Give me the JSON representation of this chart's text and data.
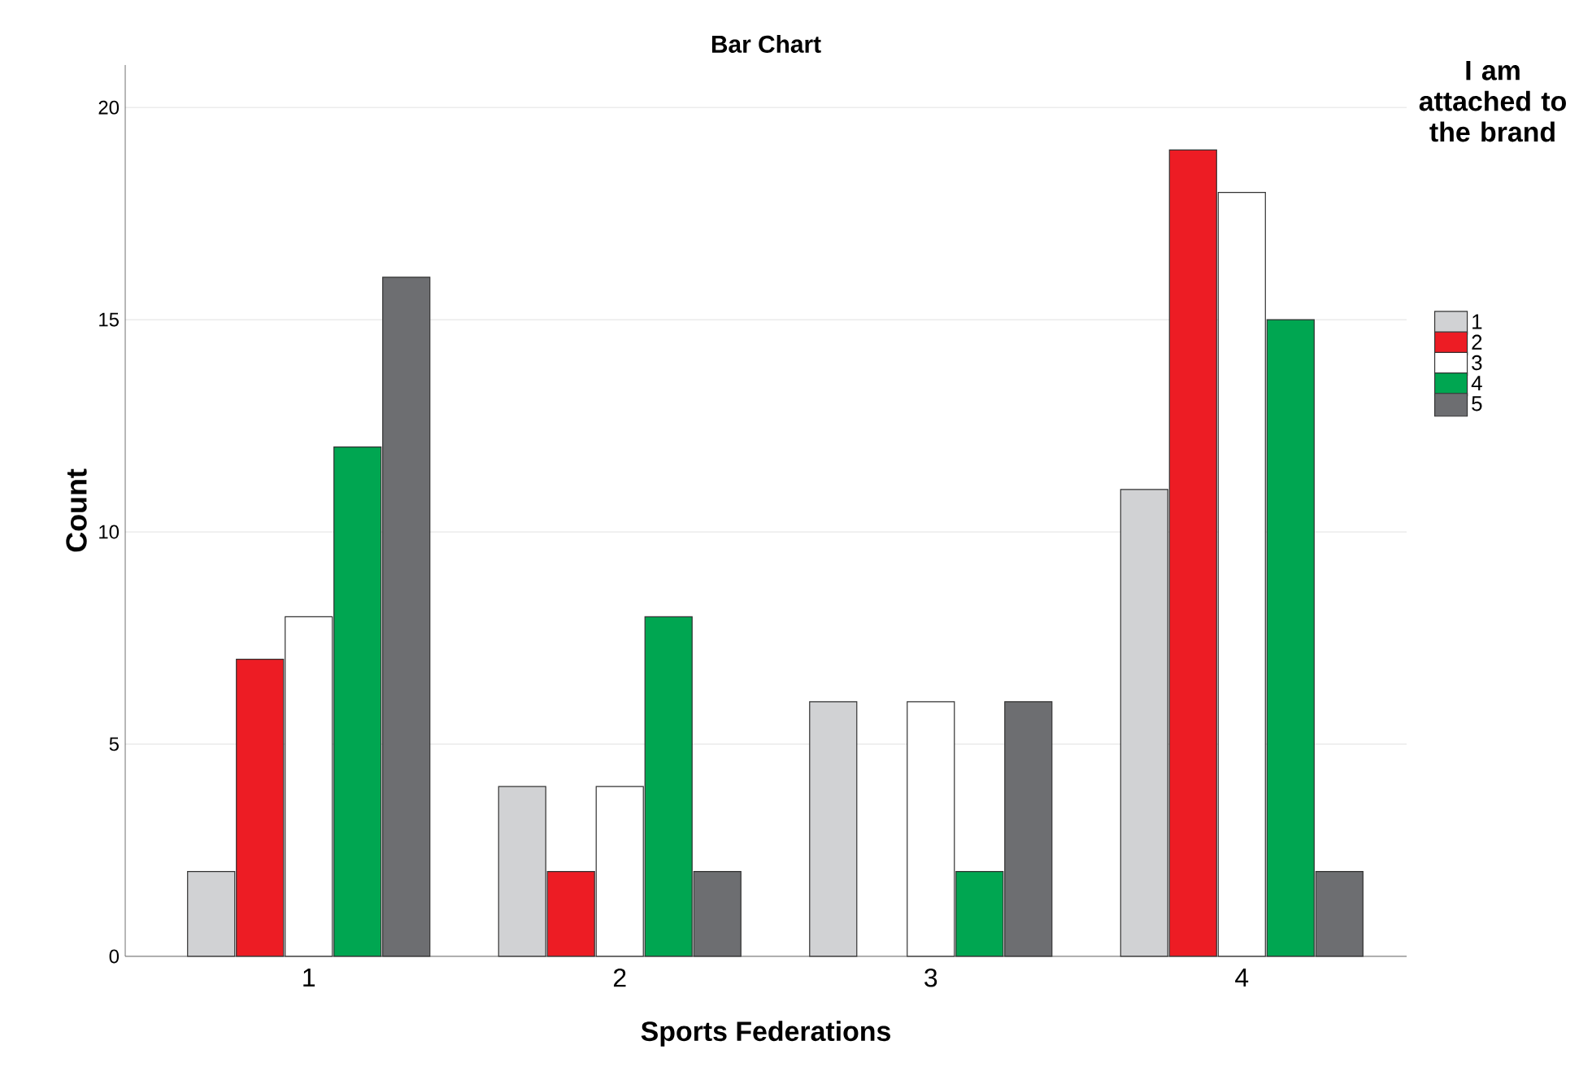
{
  "chart_data": {
    "type": "bar",
    "title": "Bar Chart",
    "xlabel": "Sports Federations",
    "ylabel": "Count",
    "legend_title": "I am attached to the brand",
    "categories": [
      "1",
      "2",
      "3",
      "4"
    ],
    "series": [
      {
        "name": "1",
        "color": "#d1d2d4",
        "values": [
          2,
          4,
          6,
          11
        ]
      },
      {
        "name": "2",
        "color": "#ed1c24",
        "values": [
          7,
          2,
          null,
          19
        ]
      },
      {
        "name": "3",
        "color": "#ffffff",
        "values": [
          8,
          4,
          6,
          18
        ]
      },
      {
        "name": "4",
        "color": "#00a651",
        "values": [
          12,
          8,
          2,
          15
        ]
      },
      {
        "name": "5",
        "color": "#6d6e71",
        "values": [
          16,
          2,
          6,
          2
        ]
      }
    ],
    "ylim": [
      0,
      21
    ],
    "yticks": [
      0,
      5,
      10,
      15,
      20
    ],
    "grid": "y",
    "legend": "top right"
  }
}
